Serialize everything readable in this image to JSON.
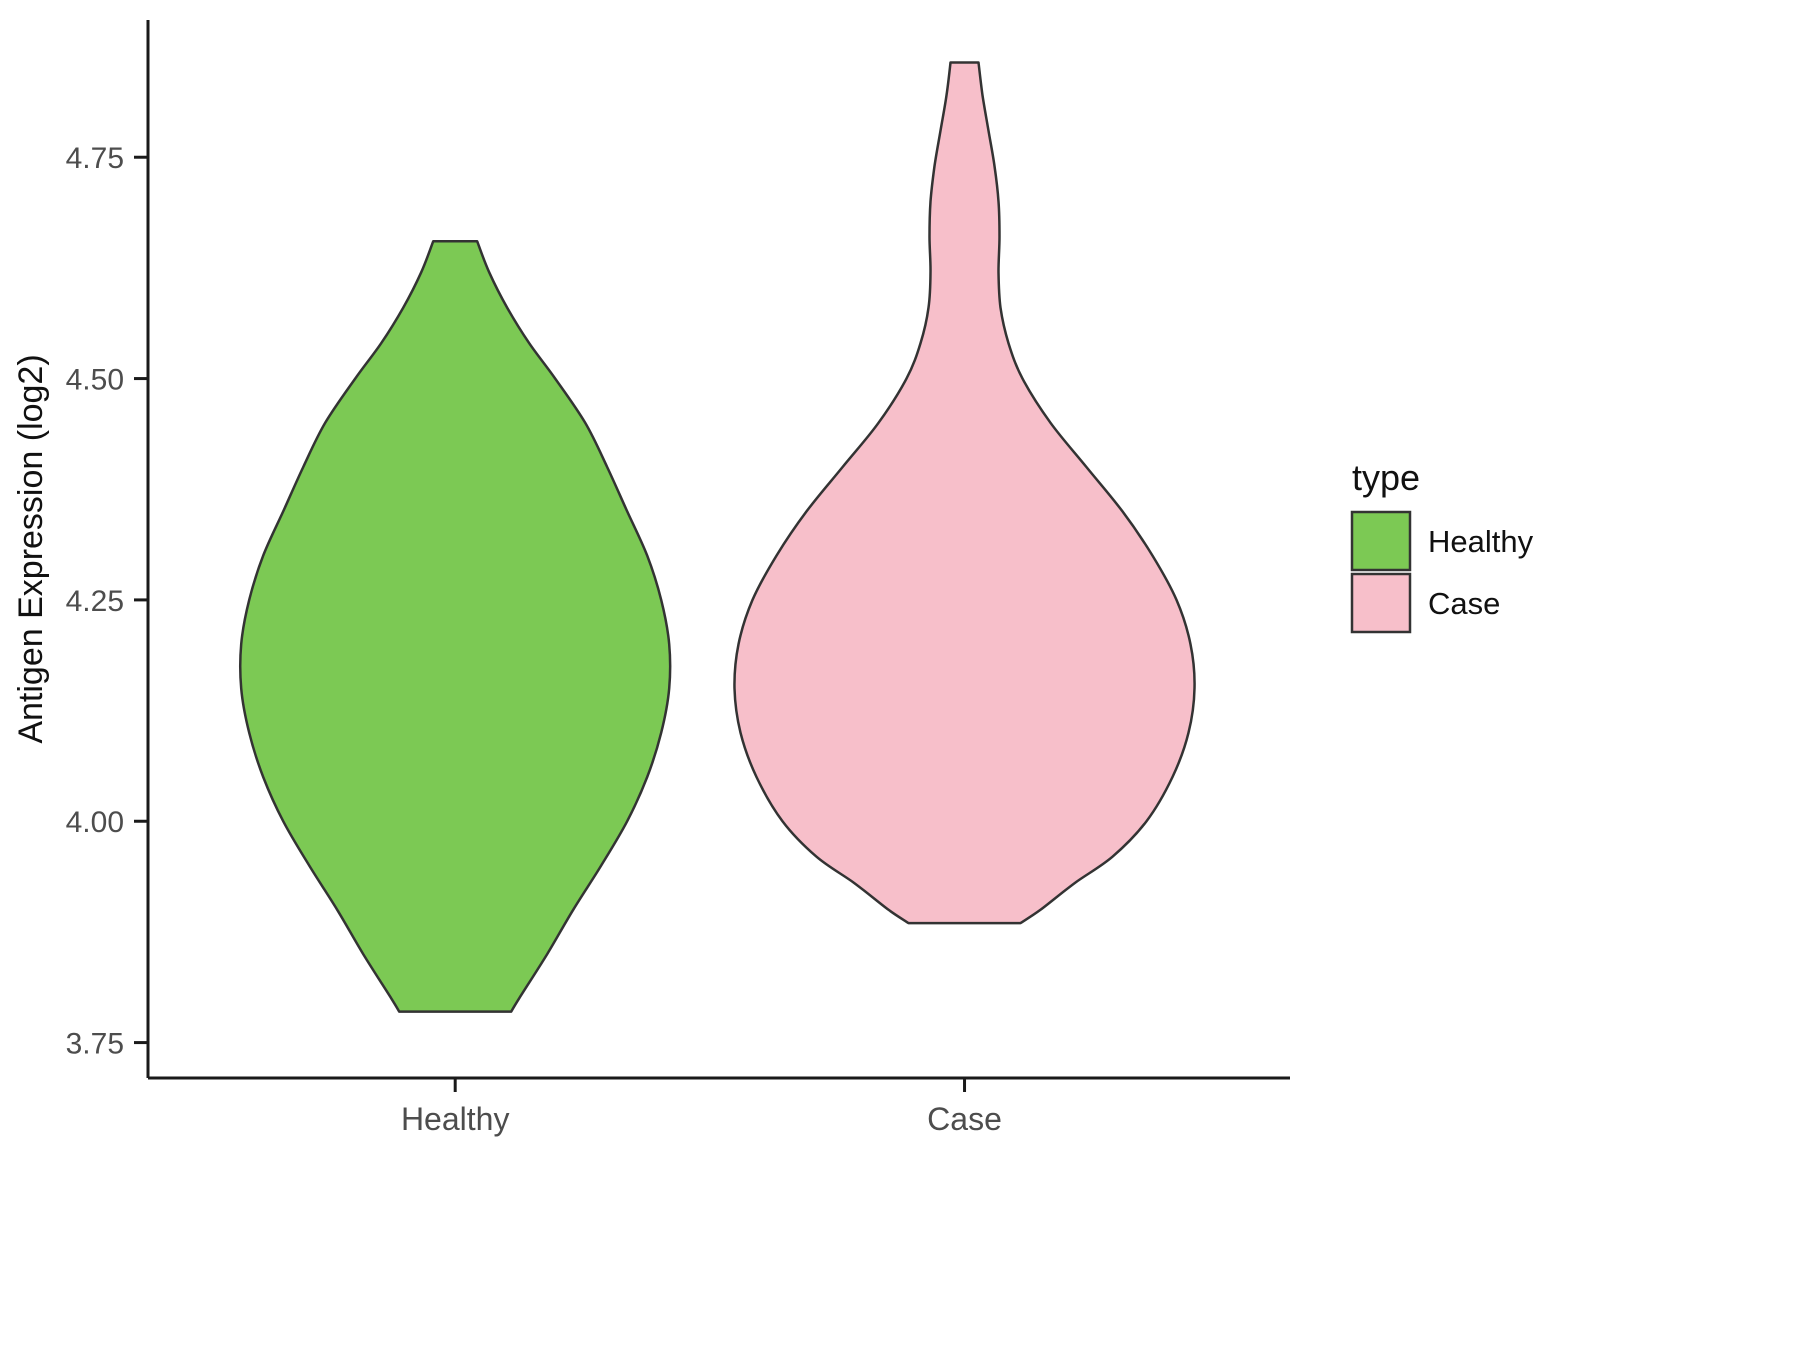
{
  "chart_data": {
    "type": "violin",
    "title": "",
    "xlabel": "",
    "ylabel": "Antigen Expression (log2)",
    "categories": [
      "Healthy",
      "Case"
    ],
    "y_ticks": [
      "3.75",
      "4.00",
      "4.25",
      "4.50",
      "4.75"
    ],
    "y_domain": [
      3.71,
      4.905
    ],
    "grid": false,
    "legend": {
      "title": "type",
      "position": "right",
      "entries": [
        {
          "label": "Healthy",
          "color": "#7CC954"
        },
        {
          "label": "Case",
          "color": "#F7BFCA"
        }
      ]
    },
    "outline_color": "#333333",
    "axis_color": "#1a1a1a",
    "tick_text_color": "#4d4d4d",
    "series": [
      {
        "name": "Healthy",
        "color": "#7CC954",
        "cx_frac": 0.269,
        "y_min": 3.785,
        "y_max": 4.655,
        "profile": [
          [
            4.655,
            22
          ],
          [
            4.62,
            34
          ],
          [
            4.58,
            52
          ],
          [
            4.54,
            74
          ],
          [
            4.5,
            100
          ],
          [
            4.45,
            130
          ],
          [
            4.4,
            152
          ],
          [
            4.35,
            172
          ],
          [
            4.3,
            192
          ],
          [
            4.25,
            206
          ],
          [
            4.2,
            214
          ],
          [
            4.15,
            214
          ],
          [
            4.1,
            206
          ],
          [
            4.05,
            192
          ],
          [
            4.0,
            172
          ],
          [
            3.95,
            146
          ],
          [
            3.9,
            118
          ],
          [
            3.85,
            92
          ],
          [
            3.8,
            64
          ],
          [
            3.785,
            56
          ]
        ]
      },
      {
        "name": "Case",
        "color": "#F7BFCA",
        "cx_frac": 0.715,
        "y_min": 3.885,
        "y_max": 4.857,
        "profile": [
          [
            4.857,
            14
          ],
          [
            4.82,
            18
          ],
          [
            4.78,
            24
          ],
          [
            4.74,
            30
          ],
          [
            4.7,
            34
          ],
          [
            4.66,
            35
          ],
          [
            4.62,
            34
          ],
          [
            4.58,
            36
          ],
          [
            4.54,
            44
          ],
          [
            4.5,
            58
          ],
          [
            4.45,
            86
          ],
          [
            4.4,
            122
          ],
          [
            4.35,
            158
          ],
          [
            4.3,
            188
          ],
          [
            4.25,
            212
          ],
          [
            4.2,
            226
          ],
          [
            4.15,
            230
          ],
          [
            4.1,
            224
          ],
          [
            4.05,
            208
          ],
          [
            4.0,
            182
          ],
          [
            3.96,
            148
          ],
          [
            3.93,
            110
          ],
          [
            3.9,
            76
          ],
          [
            3.885,
            56
          ]
        ]
      }
    ]
  }
}
